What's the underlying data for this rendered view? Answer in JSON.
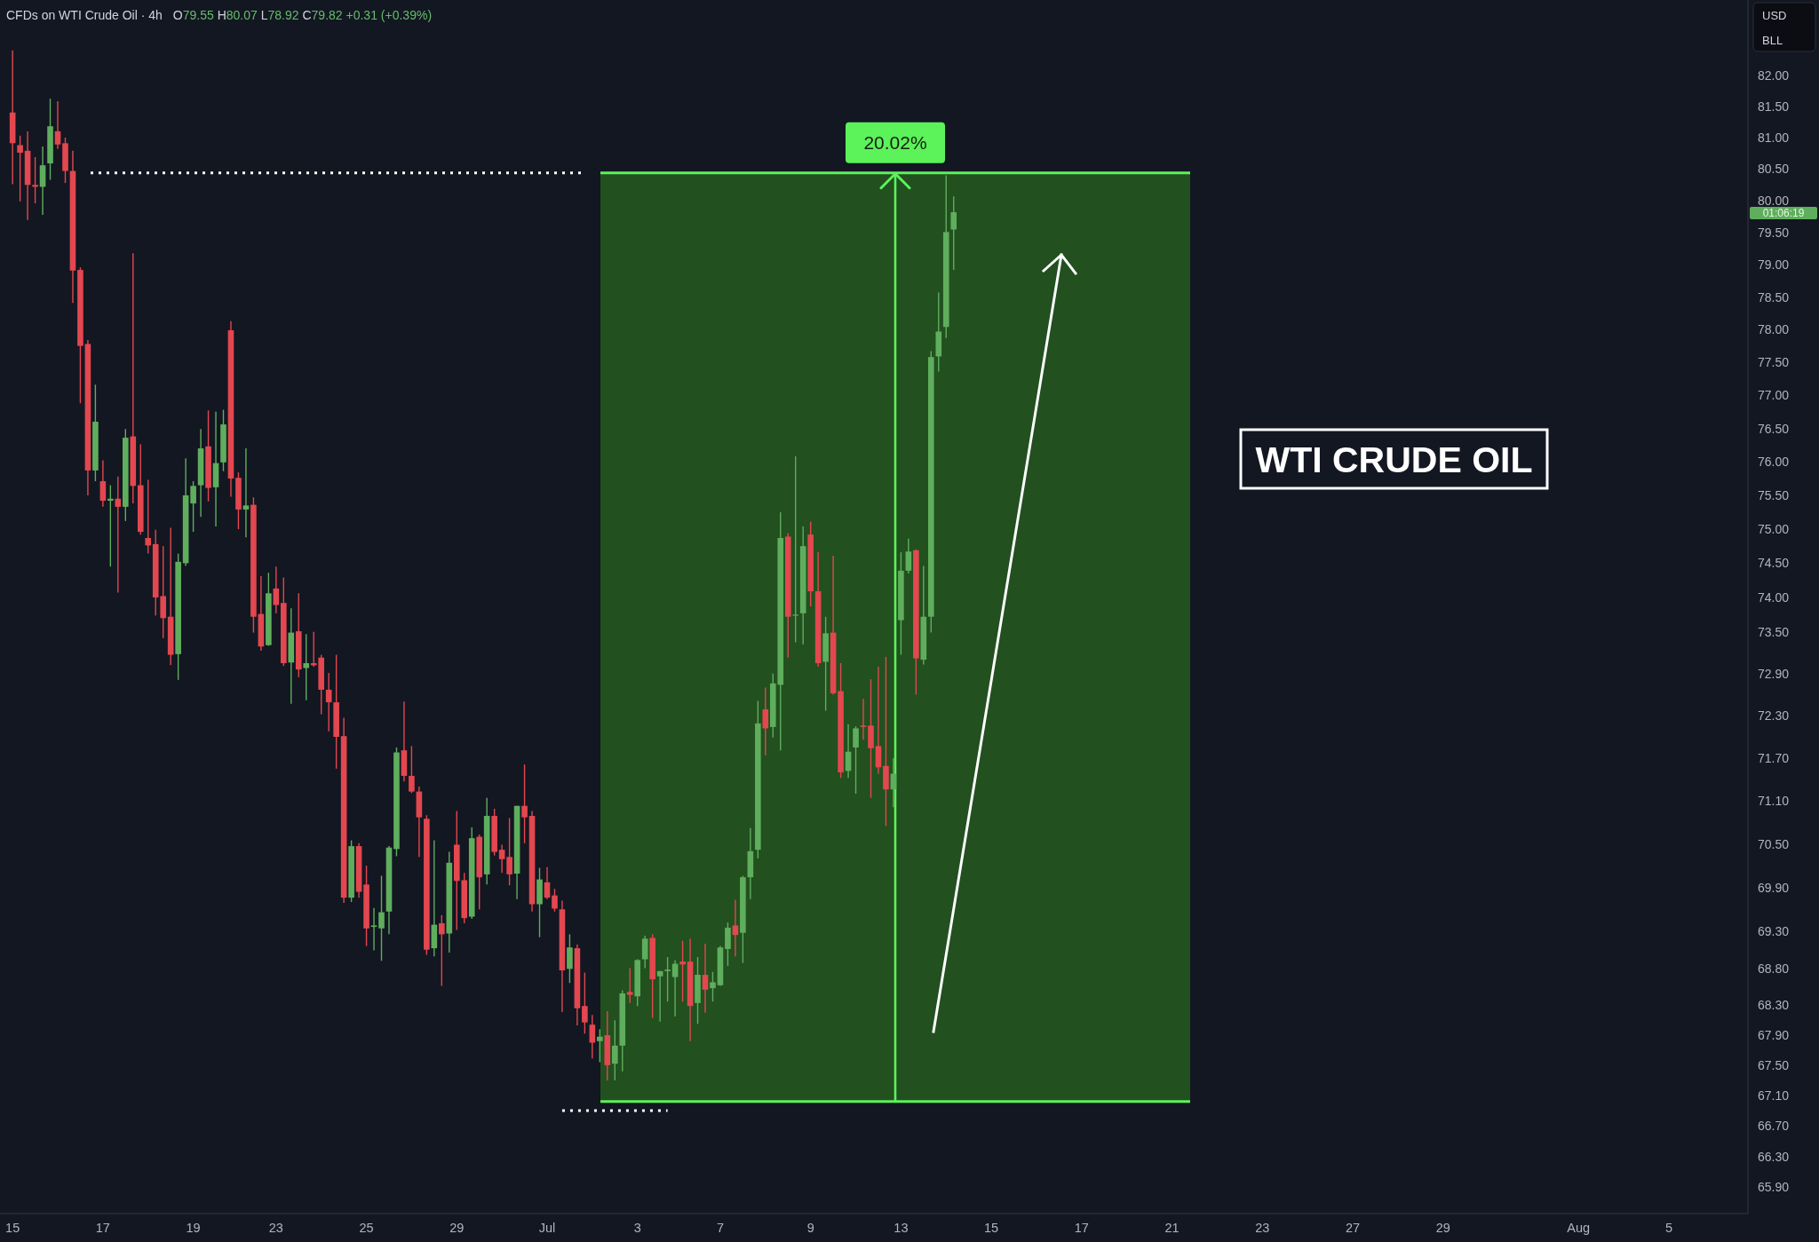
{
  "chart_data": {
    "type": "candlestick",
    "title": "CFDs on WTI Crude Oil · 4h",
    "subtitle": "O79.55 H80.07 L78.92 C79.82 +0.31 (+0.39%)",
    "categories": [
      "15",
      null,
      null,
      null,
      null,
      null,
      null,
      null,
      null,
      null,
      null,
      null,
      "17",
      null,
      null,
      null,
      null,
      null,
      null,
      null,
      null,
      null,
      null,
      null,
      "19",
      null,
      null,
      null,
      null,
      null,
      null,
      null,
      null,
      null,
      null,
      "23",
      null,
      null,
      null,
      null,
      null,
      null,
      null,
      null,
      null,
      null,
      null,
      "25",
      null,
      null,
      null,
      null,
      null,
      null,
      null,
      null,
      null,
      null,
      null,
      "29",
      null,
      null,
      null,
      null,
      null,
      null,
      null,
      null,
      null,
      null,
      null,
      "Jul",
      null,
      null,
      null,
      null,
      null,
      null,
      null,
      null,
      null,
      null,
      null,
      "3",
      null,
      null,
      null,
      null,
      null,
      null,
      null,
      null,
      null,
      null,
      "7",
      null,
      null,
      null,
      null,
      null,
      null,
      null,
      null,
      null,
      null,
      null,
      "9",
      null,
      null,
      null,
      null,
      null,
      null,
      null,
      null,
      null,
      null,
      null,
      "13",
      null,
      null,
      null,
      null,
      null,
      null,
      null,
      null,
      null,
      null,
      null,
      "15",
      null,
      null,
      null,
      null,
      null,
      null,
      null,
      null,
      null,
      null,
      null,
      "17",
      null,
      null,
      null,
      null,
      null,
      null,
      null,
      null,
      null,
      null,
      null,
      "21",
      null,
      null,
      null,
      null,
      null,
      null,
      null,
      null,
      null,
      null,
      null,
      "23",
      null,
      null,
      null,
      null,
      null,
      null,
      null,
      null,
      null,
      null,
      null,
      "27",
      null,
      null,
      null,
      null,
      null,
      null,
      null,
      null,
      null,
      null,
      null,
      "29",
      null,
      null,
      null,
      null,
      null,
      null,
      null,
      null,
      null,
      null,
      null,
      null,
      null,
      null,
      null,
      null,
      null,
      "Aug",
      null,
      null,
      null,
      null,
      null,
      null,
      null,
      null,
      null,
      null,
      null,
      "5",
      null,
      null,
      null,
      null,
      null,
      null,
      null,
      null,
      null,
      null
    ],
    "ohlc": [
      [
        81.4,
        82.4,
        80.26,
        80.91
      ],
      [
        80.88,
        81.03,
        79.99,
        80.76
      ],
      [
        80.79,
        81.1,
        79.7,
        80.25
      ],
      [
        80.25,
        80.69,
        79.96,
        80.22
      ],
      [
        80.22,
        80.86,
        79.78,
        80.56
      ],
      [
        80.59,
        81.62,
        80.33,
        81.18
      ],
      [
        81.1,
        81.58,
        80.82,
        80.89
      ],
      [
        80.91,
        81.0,
        80.28,
        80.47
      ],
      [
        80.47,
        80.79,
        78.41,
        78.91
      ],
      [
        78.92,
        78.96,
        76.88,
        77.75
      ],
      [
        77.78,
        77.84,
        75.5,
        75.87
      ],
      [
        75.87,
        77.16,
        75.71,
        76.6
      ],
      [
        75.71,
        76.02,
        75.33,
        75.42
      ],
      [
        75.42,
        75.65,
        74.45,
        75.45
      ],
      [
        75.45,
        75.78,
        74.07,
        75.33
      ],
      [
        75.33,
        76.49,
        75.12,
        76.36
      ],
      [
        76.38,
        79.18,
        75.38,
        75.64
      ],
      [
        75.65,
        76.26,
        74.92,
        74.96
      ],
      [
        74.87,
        75.73,
        74.64,
        74.76
      ],
      [
        74.78,
        74.99,
        73.74,
        74.0
      ],
      [
        74.02,
        74.75,
        73.41,
        73.7
      ],
      [
        73.72,
        75.02,
        73.02,
        73.17
      ],
      [
        73.18,
        74.64,
        72.81,
        74.52
      ],
      [
        74.5,
        76.05,
        74.46,
        75.5
      ],
      [
        75.38,
        75.71,
        74.96,
        75.64
      ],
      [
        75.65,
        76.49,
        75.18,
        76.2
      ],
      [
        76.23,
        76.77,
        75.41,
        75.61
      ],
      [
        75.62,
        76.75,
        75.04,
        75.98
      ],
      [
        75.99,
        76.78,
        75.86,
        76.56
      ],
      [
        77.99,
        78.13,
        75.48,
        75.75
      ],
      [
        75.76,
        75.84,
        75.0,
        75.29
      ],
      [
        75.29,
        76.2,
        74.88,
        75.35
      ],
      [
        75.36,
        75.47,
        73.49,
        73.72
      ],
      [
        73.76,
        74.31,
        73.23,
        73.29
      ],
      [
        73.31,
        74.36,
        73.3,
        74.06
      ],
      [
        74.13,
        74.45,
        73.77,
        73.89
      ],
      [
        73.92,
        74.29,
        73.01,
        73.05
      ],
      [
        73.06,
        73.84,
        72.47,
        73.49
      ],
      [
        73.51,
        74.06,
        72.85,
        72.96
      ],
      [
        72.98,
        73.47,
        72.52,
        73.05
      ],
      [
        73.05,
        73.5,
        73.0,
        73.02
      ],
      [
        73.13,
        73.17,
        72.32,
        72.67
      ],
      [
        72.67,
        72.91,
        72.08,
        72.49
      ],
      [
        72.49,
        73.17,
        71.55,
        72.0
      ],
      [
        72.01,
        72.27,
        69.69,
        69.76
      ],
      [
        69.76,
        70.55,
        69.7,
        70.47
      ],
      [
        70.47,
        70.51,
        69.76,
        69.84
      ],
      [
        69.94,
        70.2,
        69.1,
        69.34
      ],
      [
        69.36,
        69.62,
        69.04,
        69.38
      ],
      [
        69.34,
        70.06,
        68.9,
        69.56
      ],
      [
        69.57,
        70.47,
        69.26,
        70.45
      ],
      [
        70.43,
        71.85,
        70.33,
        71.78
      ],
      [
        71.81,
        72.5,
        71.37,
        71.45
      ],
      [
        71.45,
        71.87,
        71.21,
        71.23
      ],
      [
        71.23,
        71.3,
        70.32,
        70.87
      ],
      [
        70.85,
        70.9,
        68.98,
        69.05
      ],
      [
        69.07,
        70.55,
        68.96,
        69.39
      ],
      [
        69.41,
        69.52,
        68.56,
        69.26
      ],
      [
        69.27,
        70.39,
        69.01,
        70.24
      ],
      [
        70.49,
        70.96,
        69.32,
        69.99
      ],
      [
        70.0,
        70.1,
        69.41,
        69.48
      ],
      [
        69.5,
        70.73,
        69.47,
        70.58
      ],
      [
        70.6,
        70.63,
        69.6,
        70.04
      ],
      [
        70.08,
        71.14,
        69.94,
        70.89
      ],
      [
        70.89,
        70.99,
        70.34,
        70.39
      ],
      [
        70.42,
        70.49,
        70.1,
        70.29
      ],
      [
        70.32,
        70.86,
        69.93,
        70.08
      ],
      [
        70.09,
        71.03,
        69.74,
        71.03
      ],
      [
        71.03,
        71.61,
        70.51,
        70.87
      ],
      [
        70.89,
        70.96,
        69.57,
        69.67
      ],
      [
        69.67,
        70.17,
        69.22,
        70.01
      ],
      [
        69.97,
        70.18,
        69.74,
        69.76
      ],
      [
        69.79,
        69.88,
        69.57,
        69.61
      ],
      [
        69.6,
        69.72,
        68.21,
        68.77
      ],
      [
        68.79,
        69.26,
        68.6,
        69.08
      ],
      [
        69.07,
        69.12,
        68.03,
        68.26
      ],
      [
        68.29,
        68.74,
        67.92,
        68.07
      ],
      [
        68.04,
        68.17,
        67.59,
        67.8
      ],
      [
        67.82,
        67.98,
        67.54,
        67.88
      ],
      [
        67.9,
        68.22,
        67.3,
        67.5
      ],
      [
        67.52,
        68.1,
        67.3,
        67.76
      ],
      [
        67.76,
        68.5,
        67.42,
        68.46
      ],
      [
        68.48,
        68.8,
        68.33,
        68.44
      ],
      [
        68.42,
        68.92,
        68.29,
        68.91
      ],
      [
        68.92,
        69.24,
        68.8,
        69.2
      ],
      [
        69.21,
        69.26,
        68.13,
        68.65
      ],
      [
        68.69,
        68.76,
        68.08,
        68.76
      ],
      [
        68.76,
        68.95,
        68.35,
        68.78
      ],
      [
        68.68,
        68.91,
        68.15,
        68.86
      ],
      [
        68.89,
        69.17,
        68.35,
        68.85
      ],
      [
        68.89,
        69.2,
        67.82,
        68.29
      ],
      [
        68.33,
        68.95,
        68.05,
        68.71
      ],
      [
        68.71,
        69.13,
        68.2,
        68.51
      ],
      [
        68.53,
        68.75,
        68.35,
        68.61
      ],
      [
        68.57,
        69.1,
        68.56,
        69.08
      ],
      [
        69.06,
        69.42,
        68.83,
        69.35
      ],
      [
        69.38,
        69.73,
        68.96,
        69.25
      ],
      [
        69.28,
        70.06,
        68.87,
        70.04
      ],
      [
        70.04,
        70.72,
        69.74,
        70.4
      ],
      [
        70.42,
        72.51,
        70.3,
        72.19
      ],
      [
        72.39,
        72.7,
        71.74,
        72.12
      ],
      [
        72.14,
        72.9,
        71.99,
        72.76
      ],
      [
        72.74,
        75.25,
        71.81,
        74.87
      ],
      [
        74.89,
        74.94,
        73.13,
        73.72
      ],
      [
        73.74,
        76.08,
        73.35,
        73.75
      ],
      [
        73.77,
        75.04,
        73.32,
        74.75
      ],
      [
        74.92,
        75.11,
        73.87,
        74.09
      ],
      [
        74.09,
        74.66,
        73.0,
        73.05
      ],
      [
        73.07,
        73.72,
        72.37,
        73.48
      ],
      [
        73.49,
        74.61,
        72.6,
        72.62
      ],
      [
        72.65,
        73.05,
        71.42,
        71.5
      ],
      [
        71.52,
        72.18,
        71.42,
        71.79
      ],
      [
        71.85,
        72.15,
        71.2,
        72.12
      ],
      [
        72.16,
        72.54,
        71.96,
        72.14
      ],
      [
        72.16,
        72.82,
        71.14,
        71.84
      ],
      [
        71.87,
        73.0,
        71.48,
        71.57
      ],
      [
        71.59,
        73.14,
        70.75,
        71.26
      ],
      [
        71.26,
        71.7,
        71.01,
        71.48
      ],
      [
        73.67,
        74.66,
        73.17,
        74.39
      ],
      [
        74.39,
        74.86,
        74.35,
        74.67
      ],
      [
        74.69,
        74.7,
        72.6,
        73.12
      ],
      [
        73.1,
        74.46,
        73.03,
        73.72
      ],
      [
        73.72,
        77.67,
        73.49,
        77.58
      ],
      [
        77.59,
        78.57,
        77.36,
        77.97
      ],
      [
        78.04,
        80.4,
        77.87,
        79.51
      ],
      [
        79.55,
        80.07,
        78.92,
        79.82
      ],
      null,
      null,
      null,
      null,
      null,
      null,
      null,
      null,
      null,
      null,
      null,
      null,
      null,
      null,
      null,
      null,
      null,
      null,
      null,
      null,
      null,
      null,
      null,
      null,
      null,
      null,
      null,
      null,
      null,
      null,
      null,
      null,
      null,
      null,
      null,
      null,
      null,
      null,
      null,
      null,
      null,
      null,
      null,
      null,
      null,
      null,
      null,
      null,
      null,
      null,
      null,
      null,
      null,
      null,
      null,
      null,
      null,
      null,
      null,
      null,
      null,
      null,
      null,
      null,
      null,
      null,
      null,
      null,
      null,
      null,
      null,
      null,
      null,
      null,
      null,
      null,
      null,
      null,
      null,
      null,
      null,
      null,
      null,
      null,
      null,
      null,
      null,
      null,
      null,
      null,
      null,
      null,
      null,
      null,
      null,
      null,
      null,
      null,
      null,
      null,
      null,
      null,
      null,
      null,
      null
    ],
    "colors": [
      "#e3474f",
      "#e3474f",
      "#e3474f",
      "#e3474f",
      "#5fae5d",
      "#5fae5d",
      "#e3474f",
      "#e3474f",
      "#e3474f",
      "#e3474f",
      "#e3474f",
      "#5fae5d",
      "#e3474f",
      "#5fae5d",
      "#e3474f",
      "#5fae5d",
      "#e3474f",
      "#e3474f",
      "#e3474f",
      "#e3474f",
      "#e3474f",
      "#e3474f",
      "#5fae5d",
      "#5fae5d",
      "#5fae5d",
      "#5fae5d",
      "#e3474f",
      "#5fae5d",
      "#5fae5d",
      "#e3474f",
      "#e3474f",
      "#5fae5d",
      "#e3474f",
      "#e3474f",
      "#5fae5d",
      "#e3474f",
      "#e3474f",
      "#5fae5d",
      "#e3474f",
      "#5fae5d",
      "#e3474f",
      "#e3474f",
      "#e3474f",
      "#e3474f",
      "#e3474f",
      "#5fae5d",
      "#e3474f",
      "#e3474f",
      "#5fae5d",
      "#5fae5d",
      "#5fae5d",
      "#5fae5d",
      "#e3474f",
      "#e3474f",
      "#e3474f",
      "#e3474f",
      "#5fae5d",
      "#e3474f",
      "#5fae5d",
      "#e3474f",
      "#e3474f",
      "#5fae5d",
      "#e3474f",
      "#5fae5d",
      "#e3474f",
      "#e3474f",
      "#e3474f",
      "#5fae5d",
      "#e3474f",
      "#e3474f",
      "#5fae5d",
      "#e3474f",
      "#e3474f",
      "#e3474f",
      "#5fae5d",
      "#e3474f",
      "#e3474f",
      "#e3474f",
      "#5fae5d",
      "#e3474f",
      "#5fae5d",
      "#5fae5d",
      "#e3474f",
      "#5fae5d",
      "#5fae5d",
      "#e3474f",
      "#5fae5d",
      "#5fae5d",
      "#5fae5d",
      "#e3474f",
      "#e3474f",
      "#5fae5d",
      "#e3474f",
      "#5fae5d",
      "#5fae5d",
      "#5fae5d",
      "#e3474f",
      "#5fae5d",
      "#5fae5d",
      "#5fae5d",
      "#e3474f",
      "#5fae5d",
      "#5fae5d",
      "#e3474f",
      "#5fae5d",
      "#5fae5d",
      "#e3474f",
      "#e3474f",
      "#5fae5d",
      "#e3474f",
      "#e3474f",
      "#5fae5d",
      "#5fae5d",
      "#e3474f",
      "#e3474f",
      "#e3474f",
      "#e3474f",
      "#5fae5d",
      "#5fae5d",
      "#5fae5d",
      "#e3474f",
      "#5fae5d",
      "#5fae5d",
      "#5fae5d",
      "#5fae5d",
      "#5fae5d",
      null,
      null,
      null,
      null,
      null,
      null,
      null,
      null,
      null,
      null,
      null,
      null,
      null,
      null,
      null,
      null,
      null,
      null,
      null,
      null,
      null,
      null,
      null,
      null,
      null,
      null,
      null,
      null,
      null,
      null,
      null,
      null,
      null,
      null,
      null,
      null,
      null,
      null,
      null,
      null,
      null,
      null,
      null,
      null,
      null,
      null,
      null,
      null,
      null,
      null,
      null,
      null,
      null,
      null,
      null,
      null,
      null,
      null,
      null,
      null,
      null,
      null,
      null,
      null,
      null,
      null,
      null,
      null,
      null,
      null,
      null,
      null,
      null,
      null,
      null,
      null,
      null,
      null,
      null,
      null,
      null,
      null,
      null,
      null,
      null,
      null,
      null,
      null,
      null,
      null,
      null,
      null,
      null,
      null,
      null,
      null,
      null,
      null,
      null,
      null,
      null,
      null,
      null,
      null,
      null
    ],
    "series": [
      {
        "type": "line",
        "color": "#ffffff",
        "line_style": "dotted",
        "values": [
          null,
          null,
          null,
          null,
          null,
          null,
          null,
          null,
          null,
          null,
          null,
          null,
          null,
          null,
          null,
          null,
          null,
          null,
          null,
          null,
          null,
          null,
          null,
          null,
          null,
          null,
          null,
          null,
          null,
          null,
          null,
          null,
          null,
          null,
          null,
          null,
          null,
          null,
          null,
          null,
          null,
          null,
          null,
          null,
          null,
          null,
          null,
          null,
          null,
          null,
          null,
          null,
          null,
          null,
          null,
          null,
          null,
          null,
          null,
          null,
          null,
          null,
          null,
          null,
          null,
          null,
          null,
          null,
          null,
          null,
          null,
          null,
          null,
          66.9,
          66.9,
          66.9,
          66.9,
          66.9,
          66.9,
          66.9,
          66.9,
          66.9,
          66.9,
          66.9,
          66.9,
          66.9,
          66.9,
          66.9,
          null,
          null,
          null,
          null,
          null,
          null,
          null,
          null,
          null,
          null,
          null,
          null,
          null,
          null,
          null,
          null,
          null,
          null,
          null,
          null,
          null,
          null,
          null,
          null,
          null,
          null,
          null,
          null,
          null,
          null,
          null,
          null,
          null,
          null,
          null,
          null,
          null,
          null,
          null,
          null,
          null,
          null,
          null,
          null,
          null,
          null,
          null,
          null,
          null,
          null,
          null,
          null,
          null,
          null,
          null,
          null,
          null,
          null,
          null,
          null,
          null,
          null,
          null,
          null,
          null,
          null,
          null,
          null,
          null,
          null,
          null,
          null,
          null,
          null,
          null,
          null,
          null,
          null,
          null,
          null,
          null,
          null,
          null,
          null,
          null,
          null,
          null,
          null,
          null,
          null,
          null,
          null,
          null,
          null,
          null,
          null,
          null,
          null,
          null,
          null,
          null,
          null,
          null,
          null,
          null,
          null,
          null,
          null,
          null,
          null,
          null,
          null,
          null,
          null,
          null,
          null,
          null,
          null,
          null,
          null,
          null,
          null,
          null,
          null,
          null,
          null,
          null,
          null,
          null,
          null,
          null,
          null,
          null,
          null,
          null,
          null,
          null,
          null,
          null,
          null,
          null,
          null,
          null
        ]
      }
    ],
    "log": true,
    "ylim": [
      65.56,
      83.22
    ],
    "yticks": [
      {
        "value": 82,
        "label": "82.00"
      },
      {
        "value": 81.5,
        "label": "81.50"
      },
      {
        "value": 81,
        "label": "81.00"
      },
      {
        "value": 80.5,
        "label": "80.50"
      },
      {
        "value": 80,
        "label": "80.00"
      },
      {
        "value": 79.5,
        "label": "79.50"
      },
      {
        "value": 79,
        "label": "79.00"
      },
      {
        "value": 78.5,
        "label": "78.50"
      },
      {
        "value": 78,
        "label": "78.00"
      },
      {
        "value": 77.5,
        "label": "77.50"
      },
      {
        "value": 77,
        "label": "77.00"
      },
      {
        "value": 76.5,
        "label": "76.50"
      },
      {
        "value": 76,
        "label": "76.00"
      },
      {
        "value": 75.5,
        "label": "75.50"
      },
      {
        "value": 75,
        "label": "75.00"
      },
      {
        "value": 74.5,
        "label": "74.50"
      },
      {
        "value": 74,
        "label": "74.00"
      },
      {
        "value": 73.5,
        "label": "73.50"
      },
      {
        "value": 72.9,
        "label": "72.90"
      },
      {
        "value": 72.3,
        "label": "72.30"
      },
      {
        "value": 71.7,
        "label": "71.70"
      },
      {
        "value": 71.1,
        "label": "71.10"
      },
      {
        "value": 70.5,
        "label": "70.50"
      },
      {
        "value": 69.9,
        "label": "69.90"
      },
      {
        "value": 69.3,
        "label": "69.30"
      },
      {
        "value": 68.8,
        "label": "68.80"
      },
      {
        "value": 68.3,
        "label": "68.30"
      },
      {
        "value": 67.9,
        "label": "67.90"
      },
      {
        "value": 67.5,
        "label": "67.50"
      },
      {
        "value": 67.1,
        "label": "67.10"
      },
      {
        "value": 66.7,
        "label": "66.70"
      },
      {
        "value": 66.3,
        "label": "66.30"
      },
      {
        "value": 65.9,
        "label": "65.90"
      }
    ],
    "bands": [
      {
        "axis": "y",
        "from": 67.02,
        "to": 80.44,
        "label": "20.02%",
        "color": "#22501f"
      }
    ],
    "ref_lines": [
      {
        "axis": "y",
        "value": 80.44,
        "color": "#5cf25a"
      },
      {
        "axis": "y",
        "value": 67.02,
        "color": "#5cf25a"
      },
      {
        "axis": "y",
        "value": 80.44,
        "color": "#ffffff",
        "line_style": "dotted"
      }
    ],
    "annotations": [
      "WTI CRUDE OIL",
      "01:06:19",
      "USD",
      "BLL"
    ]
  }
}
